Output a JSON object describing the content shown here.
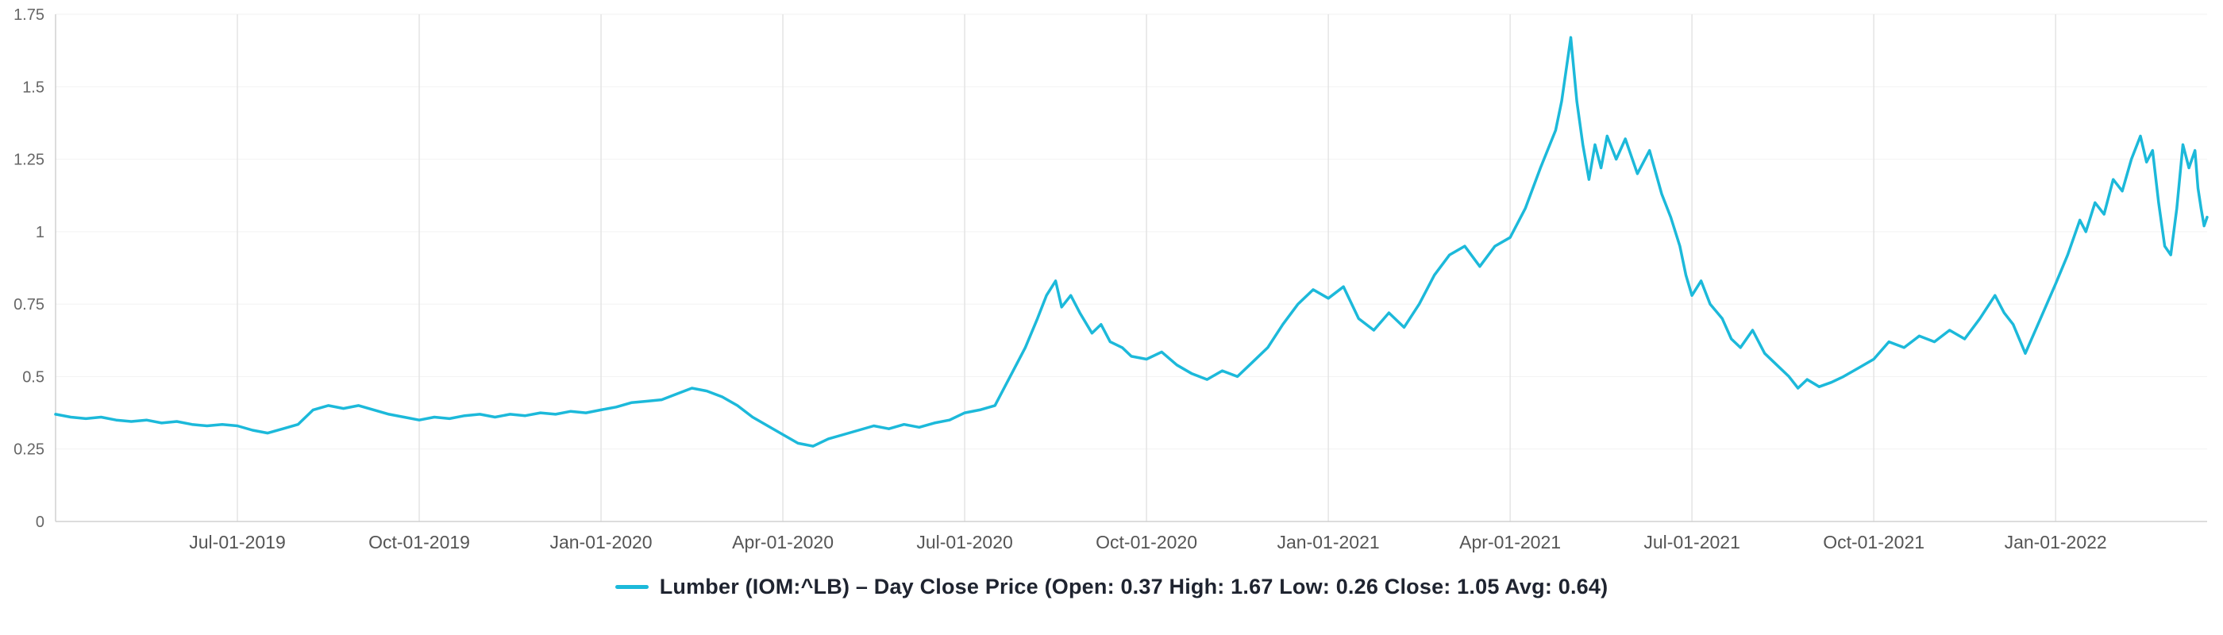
{
  "chart": {
    "legend": {
      "label": "Lumber (IOM:^LB) – Day Close Price (Open: 0.37 High: 1.67 Low: 0.26 Close: 1.05 Avg: 0.64)",
      "series_name": "Lumber (IOM:^LB) – Day Close Price",
      "stats": {
        "open": 0.37,
        "high": 1.67,
        "low": 0.26,
        "close": 1.05,
        "avg": 0.64
      },
      "color": "#1cb9da"
    }
  },
  "chart_data": {
    "type": "line",
    "title": "Lumber (IOM:^LB) Day Close Price",
    "xlabel": "",
    "ylabel": "",
    "x_unit": "months-since-first-visible-point",
    "xlim": [
      0,
      35.5
    ],
    "ylim": [
      0,
      1.75
    ],
    "grid": "light vertical lines at x ticks, very light horizontal lines at y ticks",
    "legend_position": "bottom-center",
    "line_color": "#1cb9da",
    "y_ticks": [
      {
        "v": 0,
        "label": "0"
      },
      {
        "v": 0.25,
        "label": "0.25"
      },
      {
        "v": 0.5,
        "label": "0.5"
      },
      {
        "v": 0.75,
        "label": "0.75"
      },
      {
        "v": 1,
        "label": "1"
      },
      {
        "v": 1.25,
        "label": "1.25"
      },
      {
        "v": 1.5,
        "label": "1.5"
      },
      {
        "v": 1.75,
        "label": "1.75"
      }
    ],
    "x_ticks": [
      {
        "v": 3,
        "label": "Jul-01-2019"
      },
      {
        "v": 6,
        "label": "Oct-01-2019"
      },
      {
        "v": 9,
        "label": "Jan-01-2020"
      },
      {
        "v": 12,
        "label": "Apr-01-2020"
      },
      {
        "v": 15,
        "label": "Jul-01-2020"
      },
      {
        "v": 18,
        "label": "Oct-01-2020"
      },
      {
        "v": 21,
        "label": "Jan-01-2021"
      },
      {
        "v": 24,
        "label": "Apr-01-2021"
      },
      {
        "v": 27,
        "label": "Jul-01-2021"
      },
      {
        "v": 30,
        "label": "Oct-01-2021"
      },
      {
        "v": 33,
        "label": "Jan-01-2022"
      }
    ],
    "series": [
      {
        "name": "Lumber (IOM:^LB) – Day Close Price",
        "color": "#1cb9da",
        "points": [
          [
            0,
            0.37
          ],
          [
            0.25,
            0.36
          ],
          [
            0.5,
            0.355
          ],
          [
            0.75,
            0.36
          ],
          [
            1,
            0.35
          ],
          [
            1.25,
            0.345
          ],
          [
            1.5,
            0.35
          ],
          [
            1.75,
            0.34
          ],
          [
            2,
            0.345
          ],
          [
            2.25,
            0.335
          ],
          [
            2.5,
            0.33
          ],
          [
            2.75,
            0.335
          ],
          [
            3,
            0.33
          ],
          [
            3.25,
            0.315
          ],
          [
            3.5,
            0.305
          ],
          [
            3.75,
            0.32
          ],
          [
            4,
            0.335
          ],
          [
            4.25,
            0.385
          ],
          [
            4.5,
            0.4
          ],
          [
            4.75,
            0.39
          ],
          [
            5,
            0.4
          ],
          [
            5.25,
            0.385
          ],
          [
            5.5,
            0.37
          ],
          [
            5.75,
            0.36
          ],
          [
            6,
            0.35
          ],
          [
            6.25,
            0.36
          ],
          [
            6.5,
            0.355
          ],
          [
            6.75,
            0.365
          ],
          [
            7,
            0.37
          ],
          [
            7.25,
            0.36
          ],
          [
            7.5,
            0.37
          ],
          [
            7.75,
            0.365
          ],
          [
            8,
            0.375
          ],
          [
            8.25,
            0.37
          ],
          [
            8.5,
            0.38
          ],
          [
            8.75,
            0.375
          ],
          [
            9,
            0.385
          ],
          [
            9.25,
            0.395
          ],
          [
            9.5,
            0.41
          ],
          [
            9.75,
            0.415
          ],
          [
            10,
            0.42
          ],
          [
            10.25,
            0.44
          ],
          [
            10.5,
            0.46
          ],
          [
            10.75,
            0.45
          ],
          [
            11,
            0.43
          ],
          [
            11.25,
            0.4
          ],
          [
            11.5,
            0.36
          ],
          [
            11.75,
            0.33
          ],
          [
            12,
            0.3
          ],
          [
            12.25,
            0.27
          ],
          [
            12.5,
            0.26
          ],
          [
            12.75,
            0.285
          ],
          [
            13,
            0.3
          ],
          [
            13.25,
            0.315
          ],
          [
            13.5,
            0.33
          ],
          [
            13.75,
            0.32
          ],
          [
            14,
            0.335
          ],
          [
            14.25,
            0.325
          ],
          [
            14.5,
            0.34
          ],
          [
            14.75,
            0.35
          ],
          [
            15,
            0.375
          ],
          [
            15.25,
            0.385
          ],
          [
            15.5,
            0.4
          ],
          [
            15.75,
            0.5
          ],
          [
            16,
            0.6
          ],
          [
            16.2,
            0.7
          ],
          [
            16.35,
            0.78
          ],
          [
            16.5,
            0.83
          ],
          [
            16.6,
            0.74
          ],
          [
            16.75,
            0.78
          ],
          [
            16.9,
            0.72
          ],
          [
            17.1,
            0.65
          ],
          [
            17.25,
            0.68
          ],
          [
            17.4,
            0.62
          ],
          [
            17.6,
            0.6
          ],
          [
            17.75,
            0.57
          ],
          [
            18,
            0.56
          ],
          [
            18.25,
            0.585
          ],
          [
            18.5,
            0.54
          ],
          [
            18.75,
            0.51
          ],
          [
            19,
            0.49
          ],
          [
            19.25,
            0.52
          ],
          [
            19.5,
            0.5
          ],
          [
            19.75,
            0.55
          ],
          [
            20,
            0.6
          ],
          [
            20.25,
            0.68
          ],
          [
            20.5,
            0.75
          ],
          [
            20.75,
            0.8
          ],
          [
            21,
            0.77
          ],
          [
            21.25,
            0.81
          ],
          [
            21.5,
            0.7
          ],
          [
            21.75,
            0.66
          ],
          [
            22,
            0.72
          ],
          [
            22.25,
            0.67
          ],
          [
            22.5,
            0.75
          ],
          [
            22.75,
            0.85
          ],
          [
            23,
            0.92
          ],
          [
            23.25,
            0.95
          ],
          [
            23.5,
            0.88
          ],
          [
            23.75,
            0.95
          ],
          [
            24,
            0.98
          ],
          [
            24.25,
            1.08
          ],
          [
            24.5,
            1.22
          ],
          [
            24.75,
            1.35
          ],
          [
            24.85,
            1.45
          ],
          [
            25,
            1.67
          ],
          [
            25.1,
            1.45
          ],
          [
            25.2,
            1.3
          ],
          [
            25.3,
            1.18
          ],
          [
            25.4,
            1.3
          ],
          [
            25.5,
            1.22
          ],
          [
            25.6,
            1.33
          ],
          [
            25.75,
            1.25
          ],
          [
            25.9,
            1.32
          ],
          [
            26.1,
            1.2
          ],
          [
            26.3,
            1.28
          ],
          [
            26.5,
            1.13
          ],
          [
            26.65,
            1.05
          ],
          [
            26.8,
            0.95
          ],
          [
            26.9,
            0.85
          ],
          [
            27,
            0.78
          ],
          [
            27.15,
            0.83
          ],
          [
            27.3,
            0.75
          ],
          [
            27.5,
            0.7
          ],
          [
            27.65,
            0.63
          ],
          [
            27.8,
            0.6
          ],
          [
            28,
            0.66
          ],
          [
            28.2,
            0.58
          ],
          [
            28.4,
            0.54
          ],
          [
            28.6,
            0.5
          ],
          [
            28.75,
            0.46
          ],
          [
            28.9,
            0.49
          ],
          [
            29.1,
            0.465
          ],
          [
            29.3,
            0.48
          ],
          [
            29.5,
            0.5
          ],
          [
            29.75,
            0.53
          ],
          [
            30,
            0.56
          ],
          [
            30.25,
            0.62
          ],
          [
            30.5,
            0.6
          ],
          [
            30.75,
            0.64
          ],
          [
            31,
            0.62
          ],
          [
            31.25,
            0.66
          ],
          [
            31.5,
            0.63
          ],
          [
            31.75,
            0.7
          ],
          [
            32,
            0.78
          ],
          [
            32.15,
            0.72
          ],
          [
            32.3,
            0.68
          ],
          [
            32.5,
            0.58
          ],
          [
            32.75,
            0.7
          ],
          [
            33,
            0.82
          ],
          [
            33.2,
            0.92
          ],
          [
            33.4,
            1.04
          ],
          [
            33.5,
            1
          ],
          [
            33.65,
            1.1
          ],
          [
            33.8,
            1.06
          ],
          [
            33.95,
            1.18
          ],
          [
            34.1,
            1.14
          ],
          [
            34.25,
            1.25
          ],
          [
            34.4,
            1.33
          ],
          [
            34.5,
            1.24
          ],
          [
            34.6,
            1.28
          ],
          [
            34.7,
            1.1
          ],
          [
            34.8,
            0.95
          ],
          [
            34.9,
            0.92
          ],
          [
            35,
            1.08
          ],
          [
            35.1,
            1.3
          ],
          [
            35.2,
            1.22
          ],
          [
            35.3,
            1.28
          ],
          [
            35.35,
            1.15
          ],
          [
            35.4,
            1.08
          ],
          [
            35.45,
            1.02
          ],
          [
            35.5,
            1.05
          ]
        ]
      }
    ]
  }
}
